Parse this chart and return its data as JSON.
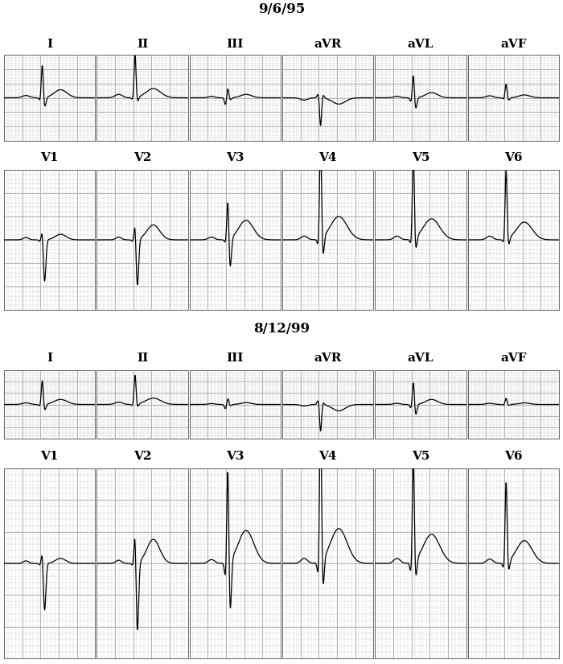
{
  "title1": "9/6/95",
  "title2": "8/12/99",
  "leads_row1": [
    "I",
    "II",
    "III",
    "aVR",
    "aVL",
    "aVF"
  ],
  "leads_row2": [
    "V1",
    "V2",
    "V3",
    "V4",
    "V5",
    "V6"
  ],
  "grid_minor_color": "#cccccc",
  "grid_major_color": "#aaaaaa",
  "bg_color": "#ffffff",
  "line_color": "#000000",
  "title_fontsize": 12,
  "label_fontsize": 11
}
